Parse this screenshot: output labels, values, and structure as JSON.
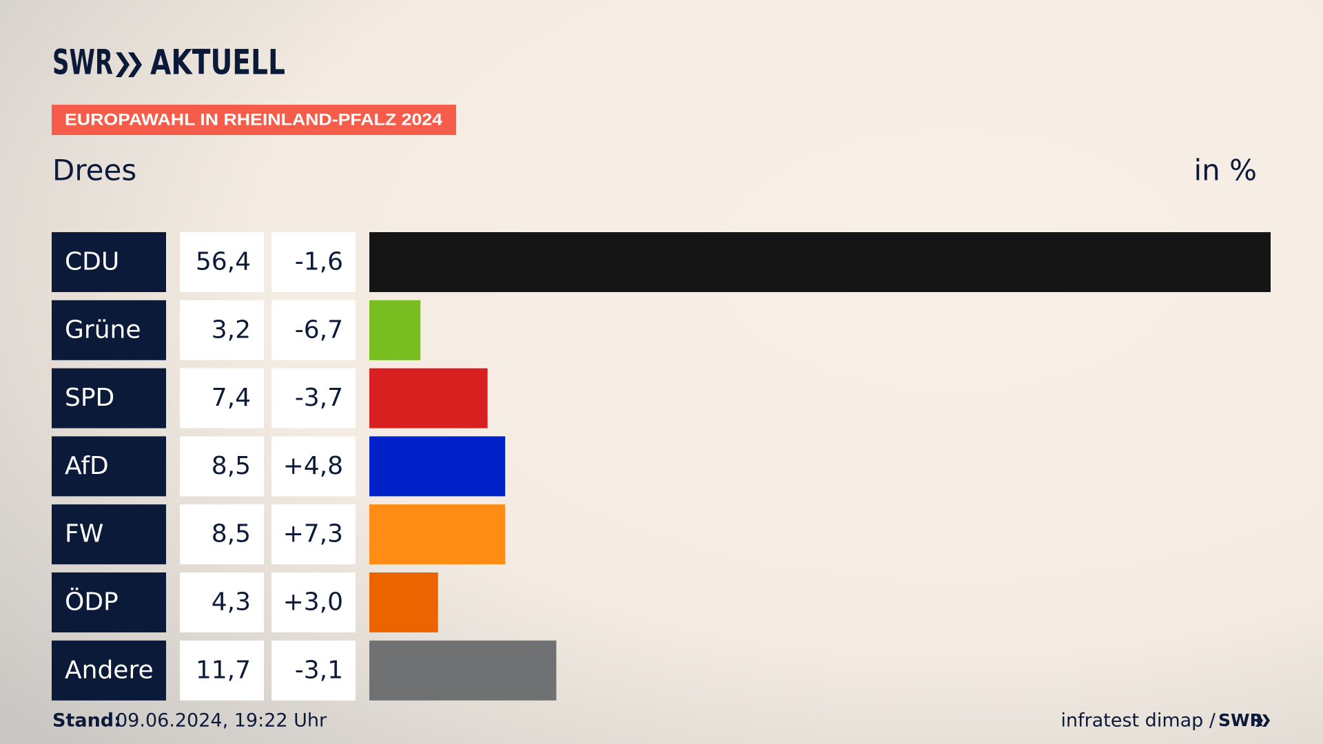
{
  "header": {
    "brand": "SWR",
    "product": "AKTUELL"
  },
  "chart_data": {
    "type": "bar",
    "orientation": "horizontal",
    "title": "EUROPAWAHL IN RHEINLAND-PFALZ 2024",
    "subtitle": "Drees",
    "unit": "in %",
    "categories": [
      "CDU",
      "Grüne",
      "SPD",
      "AfD",
      "FW",
      "ÖDP",
      "Andere"
    ],
    "values": [
      56.4,
      3.2,
      7.4,
      8.5,
      8.5,
      4.3,
      11.7
    ],
    "value_labels": [
      "56,4",
      "3,2",
      "7,4",
      "8,5",
      "8,5",
      "4,3",
      "11,7"
    ],
    "changes": [
      -1.6,
      -6.7,
      -3.7,
      4.8,
      7.3,
      3.0,
      -3.1
    ],
    "change_labels": [
      "-1,6",
      "-6,7",
      "-3,7",
      "+4,8",
      "+7,3",
      "+3,0",
      "-3,1"
    ],
    "colors": [
      "#151515",
      "#78be20",
      "#d7201f",
      "#0020c8",
      "#ff8c14",
      "#eb6400",
      "#707173"
    ]
  },
  "footer": {
    "stand_label": "Stand:",
    "stand": "09.06.2024, 19:22 Uhr",
    "source": "infratest dimap /",
    "source_brand": "SWR"
  }
}
